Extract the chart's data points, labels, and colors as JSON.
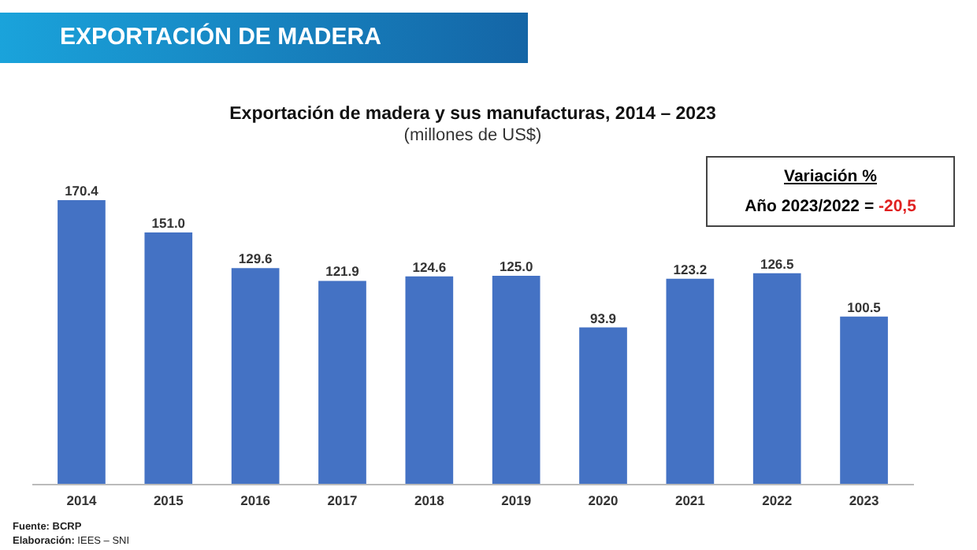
{
  "chart_data": {
    "type": "bar",
    "title": "Exportación de madera y sus manufacturas, 2014 – 2023",
    "subtitle": "(millones de US$)",
    "categories": [
      "2014",
      "2015",
      "2016",
      "2017",
      "2018",
      "2019",
      "2020",
      "2021",
      "2022",
      "2023"
    ],
    "values": [
      170.4,
      151.0,
      129.6,
      121.9,
      124.6,
      125.0,
      93.9,
      123.2,
      126.5,
      100.5
    ],
    "value_labels": [
      "170.4",
      "151.0",
      "129.6",
      "121.9",
      "124.6",
      "125.0",
      "93.9",
      "123.2",
      "126.5",
      "100.5"
    ],
    "color": "#4472c4",
    "grid": false,
    "annotations": [
      "EXPORTACIÓN DE MADERA",
      "Variación %",
      "Año 2023/2022 =",
      "-20,5",
      "Fuente: BCRP",
      "Elaboración: IEES – SNI"
    ]
  }
}
